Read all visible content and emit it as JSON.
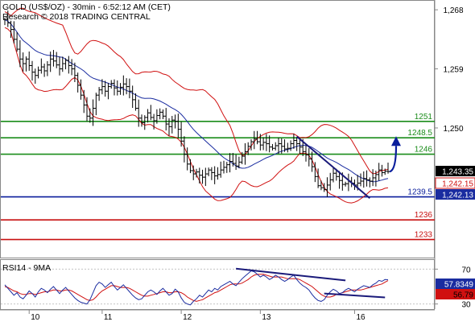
{
  "header": {
    "line1": "GOLD (US$/OZ) - 30min - 6:52:12 AM (CET)",
    "line2": "Research © 2018 TRADING CENTRAL"
  },
  "rsi_label": "RSI14 - 9MA",
  "colors": {
    "candles": "#000000",
    "bollinger": "#d01010",
    "moving_average": "#1a2ca0",
    "support_resistance_green": "#1a8c1a",
    "pivot_blue": "#0a1e9c",
    "support_red": "#c81010",
    "trendline": "#1a1a7a",
    "projection_arrow": "#0a1e9c",
    "last_price_box": "#000000",
    "ma_box": "#1a2ca0",
    "rsi_line": "#1a2ca0",
    "rsi_ma_line": "#d01010"
  },
  "chart_data": [
    {
      "type": "candlestick",
      "title": "GOLD (US$/OZ) - 30min",
      "x_tick_labels": [
        "10",
        "11",
        "12",
        "13",
        "16"
      ],
      "ylim": [
        1230.5,
        1269
      ],
      "y_tick_labels": [
        "1,268",
        "1,259",
        "1,250"
      ],
      "y_ticks": [
        1268,
        1259,
        1250
      ],
      "grid": false,
      "horizontal_levels": [
        {
          "value": 1251,
          "label": "1251",
          "color": "green"
        },
        {
          "value": 1248.5,
          "label": "1248.5",
          "color": "green"
        },
        {
          "value": 1246,
          "label": "1246",
          "color": "green"
        },
        {
          "value": 1239.5,
          "label": "1239.5",
          "color": "blue"
        },
        {
          "value": 1236,
          "label": "1236",
          "color": "red"
        },
        {
          "value": 1233,
          "label": "1233",
          "color": "red"
        }
      ],
      "price_tags": [
        {
          "label": "1,243.35",
          "value": 1243.35,
          "style": "last_price"
        },
        {
          "label": "1,242.15",
          "value": 1242.15,
          "style": "bollinger"
        },
        {
          "label": "1,242.13",
          "value": 1242.13,
          "style": "moving_average"
        }
      ],
      "close_series": [
        1266.5,
        1266.0,
        1265.0,
        1263.5,
        1262.0,
        1260.5,
        1259.8,
        1260.5,
        1259.5,
        1258.5,
        1258.0,
        1258.8,
        1259.3,
        1258.7,
        1259.6,
        1260.5,
        1260.2,
        1259.6,
        1259.0,
        1259.8,
        1260.3,
        1259.5,
        1259.0,
        1258.0,
        1256.5,
        1255.0,
        1253.5,
        1251.8,
        1251.5,
        1253.0,
        1255.0,
        1255.8,
        1256.3,
        1255.6,
        1256.3,
        1256.8,
        1256.1,
        1255.6,
        1256.2,
        1256.7,
        1256.3,
        1255.6,
        1254.3,
        1253.0,
        1251.5,
        1250.8,
        1251.6,
        1252.3,
        1251.6,
        1251.1,
        1251.9,
        1252.4,
        1251.8,
        1250.6,
        1250.2,
        1251.2,
        1251.0,
        1249.8,
        1248.0,
        1246.0,
        1244.5,
        1243.5,
        1243.0,
        1243.3,
        1242.8,
        1242.5,
        1243.0,
        1243.6,
        1243.2,
        1242.7,
        1242.9,
        1243.6,
        1244.0,
        1244.4,
        1244.9,
        1244.6,
        1244.2,
        1244.8,
        1245.7,
        1246.4,
        1247.2,
        1247.9,
        1248.3,
        1247.9,
        1247.4,
        1247.8,
        1247.6,
        1247.1,
        1246.9,
        1247.3,
        1247.6,
        1247.2,
        1246.8,
        1246.9,
        1247.6,
        1248.1,
        1247.6,
        1247.1,
        1246.4,
        1245.9,
        1245.3,
        1244.1,
        1242.6,
        1241.2,
        1240.9,
        1240.6,
        1241.3,
        1242.1,
        1243.1,
        1242.6,
        1242.0,
        1241.4,
        1241.5,
        1241.9,
        1241.6,
        1241.3,
        1241.6,
        1241.9,
        1242.3,
        1242.1,
        1241.9,
        1242.4,
        1242.9,
        1243.6,
        1243.2,
        1243.4,
        1243.35
      ],
      "projection_arrow": {
        "from": 1243.35,
        "to": 1248.5,
        "color": "blue"
      },
      "trendlines": [
        {
          "from_index": 96,
          "from_value": 1248.7,
          "to_index": 120,
          "to_value": 1239.3,
          "color": "dark blue"
        }
      ]
    },
    {
      "type": "line",
      "title": "RSI14 - 9MA",
      "ylim": [
        26,
        74
      ],
      "y_tick_labels": [
        "70",
        "30"
      ],
      "y_ticks": [
        70,
        30
      ],
      "price_tags": [
        {
          "label": "57.8349",
          "value": 57.8349,
          "style": "rsi"
        },
        {
          "label": "56.79",
          "value": 56.79,
          "style": "rsi_ma"
        }
      ],
      "series": [
        {
          "values": [
            52,
            48,
            44,
            40,
            43,
            38,
            36,
            40,
            45,
            42,
            38,
            44,
            48,
            46,
            43,
            47,
            50,
            46,
            42,
            46,
            49,
            45,
            41,
            37,
            34,
            32,
            31,
            30,
            35,
            43,
            51,
            55,
            53,
            49,
            52,
            55,
            50,
            46,
            49,
            52,
            48,
            44,
            40,
            37,
            35,
            36,
            40,
            44,
            46,
            44,
            41,
            45,
            48,
            44,
            40,
            42,
            47,
            44,
            37,
            32,
            30,
            29,
            33,
            36,
            40,
            38,
            42,
            46,
            44,
            48,
            46,
            50,
            52,
            54,
            56,
            53,
            51,
            55,
            59,
            62,
            65,
            68,
            67,
            64,
            61,
            63,
            61,
            58,
            60,
            63,
            61,
            58,
            56,
            58,
            61,
            63,
            58,
            54,
            51,
            49,
            46,
            41,
            37,
            34,
            33,
            35,
            40,
            44,
            47,
            45,
            42,
            43,
            46,
            48,
            46,
            44,
            47,
            49,
            51,
            50,
            49,
            52,
            54,
            57,
            56,
            58,
            57.83
          ]
        },
        {
          "values": [
            50,
            49,
            47,
            45,
            44,
            42,
            41,
            41,
            42,
            42,
            41,
            42,
            43,
            44,
            44,
            45,
            46,
            46,
            45,
            45,
            46,
            46,
            45,
            43,
            41,
            39,
            37,
            35,
            34,
            35,
            38,
            42,
            45,
            47,
            49,
            51,
            51,
            50,
            49,
            49,
            49,
            48,
            46,
            44,
            42,
            40,
            39,
            39,
            40,
            41,
            42,
            43,
            44,
            44,
            43,
            43,
            44,
            44,
            43,
            41,
            38,
            36,
            34,
            33,
            34,
            35,
            37,
            39,
            41,
            43,
            44,
            46,
            48,
            50,
            52,
            53,
            53,
            53,
            54,
            56,
            58,
            61,
            63,
            64,
            64,
            64,
            63,
            62,
            61,
            61,
            61,
            61,
            60,
            59,
            59,
            59,
            59,
            58,
            56,
            54,
            52,
            50,
            47,
            44,
            41,
            39,
            38,
            38,
            39,
            41,
            42,
            43,
            44,
            45,
            46,
            46,
            46,
            46,
            47,
            48,
            49,
            50,
            51,
            52,
            53,
            55,
            56.79
          ]
        }
      ],
      "trendlines": [
        {
          "from_index": 76,
          "from_value": 70.5,
          "to_index": 112,
          "to_value": 57.0,
          "color": "dark blue"
        },
        {
          "from_index": 105,
          "from_value": 42.0,
          "to_index": 125,
          "to_value": 37.5,
          "color": "dark blue"
        }
      ]
    }
  ]
}
